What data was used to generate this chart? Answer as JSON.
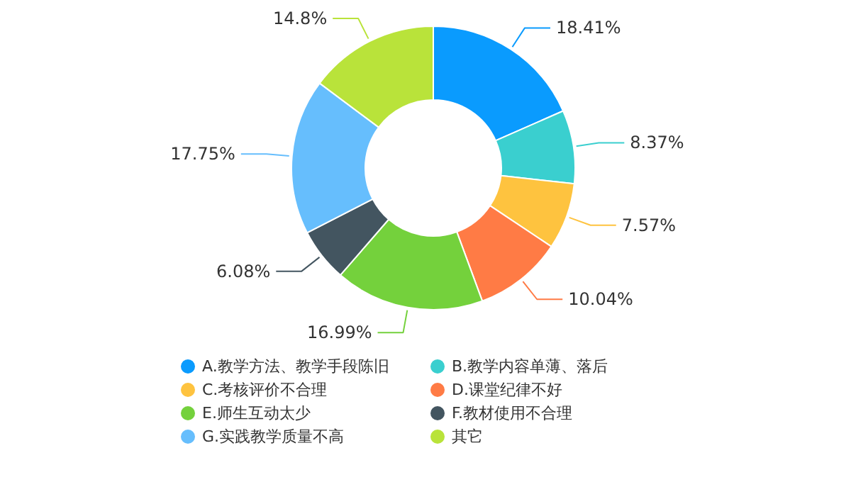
{
  "chart_data": {
    "type": "donut",
    "categories": [
      "A.教学方法、教学手段陈旧",
      "B.教学内容单薄、落后",
      "C.考核评价不合理",
      "D.课堂纪律不好",
      "E.师生互动太少",
      "F.教材使用不合理",
      "G.实践教学质量不高",
      "其它"
    ],
    "values": [
      18.41,
      8.37,
      7.57,
      10.04,
      16.99,
      6.08,
      17.75,
      14.8
    ],
    "value_labels": [
      "18.41%",
      "8.37%",
      "7.57%",
      "10.04%",
      "16.99%",
      "6.08%",
      "17.75%",
      "14.8%"
    ],
    "colors": [
      "#0a9bfe",
      "#3acfcf",
      "#fec33f",
      "#ff7b45",
      "#74d13c",
      "#435560",
      "#66befd",
      "#b9e33a"
    ],
    "legend": "bottom"
  }
}
